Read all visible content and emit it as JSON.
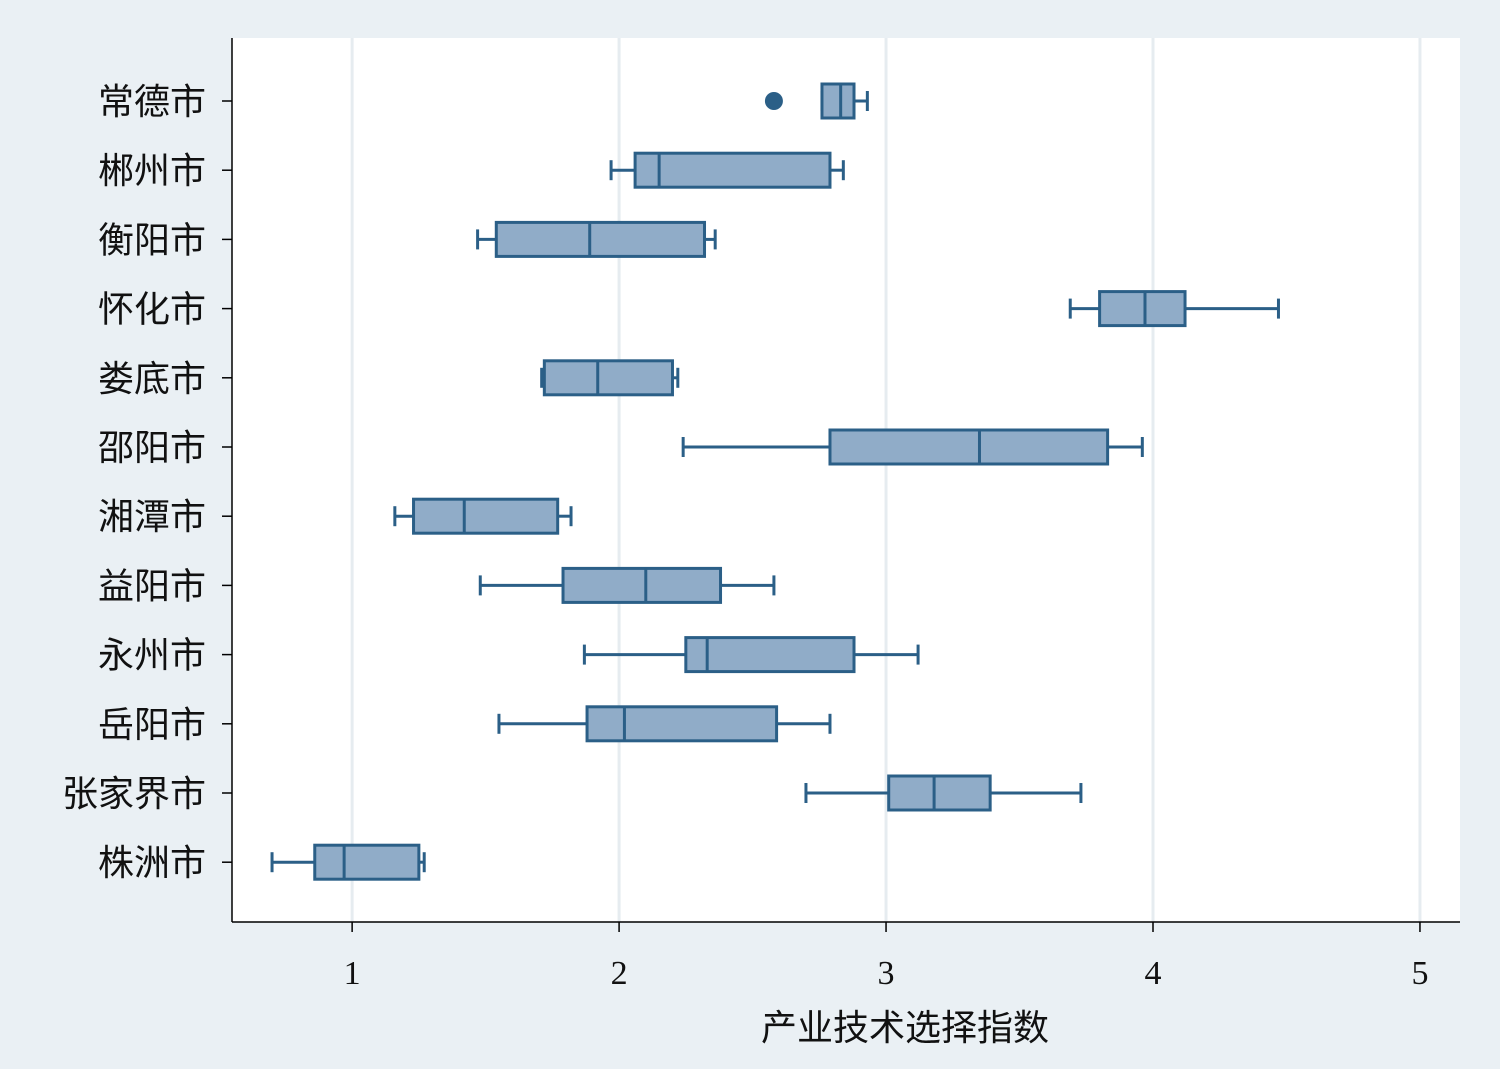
{
  "chart_data": {
    "type": "boxplot",
    "orientation": "horizontal",
    "xlabel": "产业技术选择指数",
    "ylabel": "",
    "xlim": [
      0.55,
      5.15
    ],
    "xticks": [
      1,
      2,
      3,
      4,
      5
    ],
    "grid": "vertical",
    "colors": {
      "background": "#eaf0f4",
      "plot_area": "#ffffff",
      "gridline": "#e6ecf0",
      "box_fill": "#90acc8",
      "box_stroke": "#2b5f87",
      "outlier": "#2b5f87",
      "axis": "#000000"
    },
    "categories": [
      "常德市",
      "郴州市",
      "衡阳市",
      "怀化市",
      "娄底市",
      "邵阳市",
      "湘潭市",
      "益阳市",
      "永州市",
      "岳阳市",
      "张家界市",
      "株洲市"
    ],
    "boxes": [
      {
        "label": "常德市",
        "whisker_low": 2.76,
        "q1": 2.76,
        "median": 2.83,
        "q3": 2.88,
        "whisker_high": 2.93,
        "outliers": [
          2.58
        ]
      },
      {
        "label": "郴州市",
        "whisker_low": 1.97,
        "q1": 2.06,
        "median": 2.15,
        "q3": 2.79,
        "whisker_high": 2.84,
        "outliers": []
      },
      {
        "label": "衡阳市",
        "whisker_low": 1.47,
        "q1": 1.54,
        "median": 1.89,
        "q3": 2.32,
        "whisker_high": 2.36,
        "outliers": []
      },
      {
        "label": "怀化市",
        "whisker_low": 3.69,
        "q1": 3.8,
        "median": 3.97,
        "q3": 4.12,
        "whisker_high": 4.47,
        "outliers": []
      },
      {
        "label": "娄底市",
        "whisker_low": 1.71,
        "q1": 1.72,
        "median": 1.92,
        "q3": 2.2,
        "whisker_high": 2.22,
        "outliers": []
      },
      {
        "label": "邵阳市",
        "whisker_low": 2.24,
        "q1": 2.79,
        "median": 3.35,
        "q3": 3.83,
        "whisker_high": 3.96,
        "outliers": []
      },
      {
        "label": "湘潭市",
        "whisker_low": 1.16,
        "q1": 1.23,
        "median": 1.42,
        "q3": 1.77,
        "whisker_high": 1.82,
        "outliers": []
      },
      {
        "label": "益阳市",
        "whisker_low": 1.48,
        "q1": 1.79,
        "median": 2.1,
        "q3": 2.38,
        "whisker_high": 2.58,
        "outliers": []
      },
      {
        "label": "永州市",
        "whisker_low": 1.87,
        "q1": 2.25,
        "median": 2.33,
        "q3": 2.88,
        "whisker_high": 3.12,
        "outliers": []
      },
      {
        "label": "岳阳市",
        "whisker_low": 1.55,
        "q1": 1.88,
        "median": 2.02,
        "q3": 2.59,
        "whisker_high": 2.79,
        "outliers": []
      },
      {
        "label": "张家界市",
        "whisker_low": 2.7,
        "q1": 3.01,
        "median": 3.18,
        "q3": 3.39,
        "whisker_high": 3.73,
        "outliers": []
      },
      {
        "label": "株洲市",
        "whisker_low": 0.7,
        "q1": 0.86,
        "median": 0.97,
        "q3": 1.25,
        "whisker_high": 1.27,
        "outliers": []
      }
    ]
  }
}
